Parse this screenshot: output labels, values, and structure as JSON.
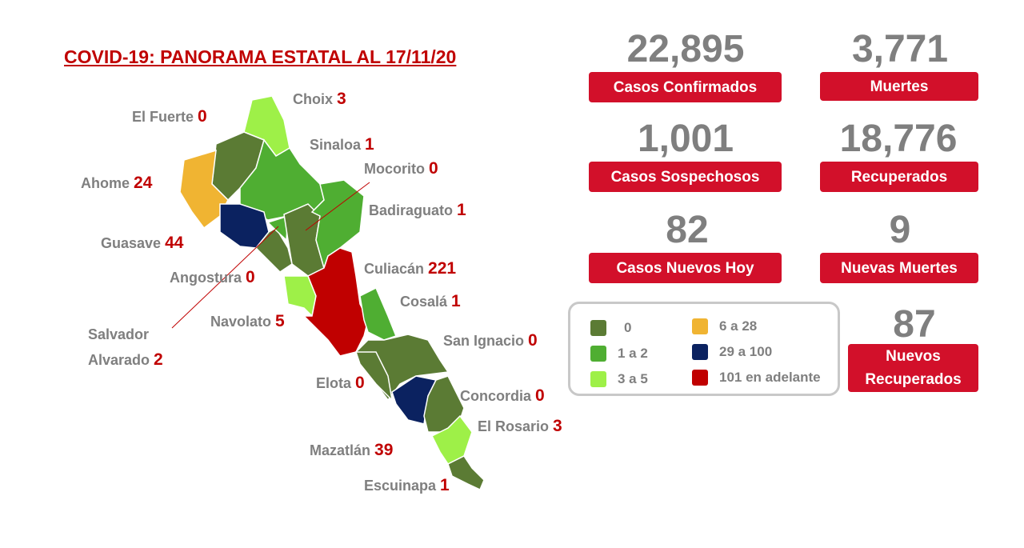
{
  "title": "COVID-19: PANORAMA ESTATAL AL 17/11/20",
  "municipalities": [
    {
      "name": "Choix",
      "cases": 3
    },
    {
      "name": "El Fuerte",
      "cases": 0
    },
    {
      "name": "Sinaloa",
      "cases": 1
    },
    {
      "name": "Ahome",
      "cases": 24
    },
    {
      "name": "Mocorito",
      "cases": 0
    },
    {
      "name": "Badiraguato",
      "cases": 1
    },
    {
      "name": "Guasave",
      "cases": 44
    },
    {
      "name": "Culiacán",
      "cases": 221
    },
    {
      "name": "Angostura",
      "cases": 0
    },
    {
      "name": "Cosalá",
      "cases": 1
    },
    {
      "name": "Navolato",
      "cases": 5
    },
    {
      "name": "Salvador Alvarado",
      "cases": 2
    },
    {
      "name": "San Ignacio",
      "cases": 0
    },
    {
      "name": "Elota",
      "cases": 0
    },
    {
      "name": "Concordia",
      "cases": 0
    },
    {
      "name": "El Rosario",
      "cases": 3
    },
    {
      "name": "Mazatlán",
      "cases": 39
    },
    {
      "name": "Escuinapa",
      "cases": 1
    }
  ],
  "stats": [
    {
      "value": "22,895",
      "label": "Casos Confirmados"
    },
    {
      "value": "3,771",
      "label": "Muertes"
    },
    {
      "value": "1,001",
      "label": "Casos Sospechosos"
    },
    {
      "value": "18,776",
      "label": "Recuperados"
    },
    {
      "value": "82",
      "label": "Casos Nuevos Hoy"
    },
    {
      "value": "9",
      "label": "Nuevas Muertes"
    },
    {
      "value": "87",
      "label": "Nuevos Recuperados"
    }
  ],
  "legend": [
    {
      "label": "0",
      "color": "#5b7b34"
    },
    {
      "label": "1 a 2",
      "color": "#4fae32"
    },
    {
      "label": "3 a 5",
      "color": "#9ef048"
    },
    {
      "label": "6 a 28",
      "color": "#f0b432"
    },
    {
      "label": "29 a 100",
      "color": "#0b2260"
    },
    {
      "label": "101 en adelante",
      "color": "#c00000"
    }
  ]
}
